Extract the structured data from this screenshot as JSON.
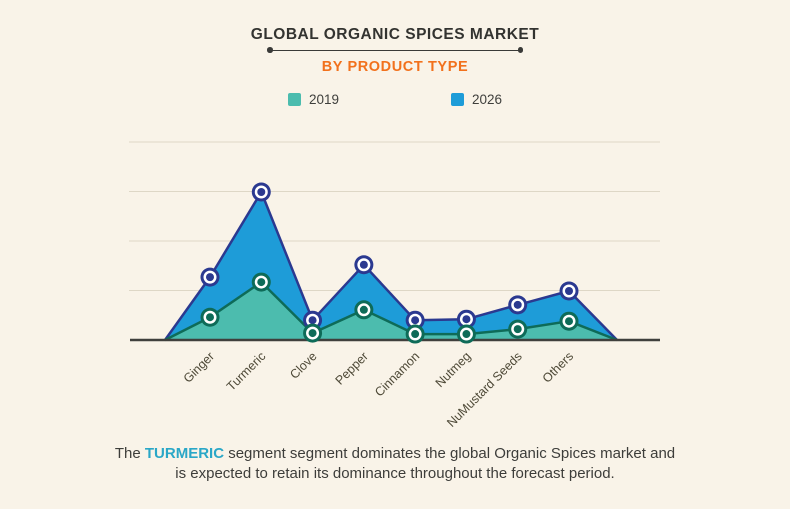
{
  "header": {
    "title": "GLOBAL ORGANIC SPICES MARKET",
    "subtitle": "BY PRODUCT TYPE"
  },
  "colors": {
    "background": "#f9f3e8",
    "subtitle_accent": "#f2711c",
    "highlight_teal": "#2aa7c7",
    "grid_line": "#ded7c6",
    "axis_line": "#3f3f3c",
    "label_text": "#4e4937"
  },
  "chart_data": {
    "type": "area",
    "title": "GLOBAL ORGANIC SPICES MARKET BY PRODUCT TYPE",
    "xlabel": "",
    "ylabel": "",
    "categories": [
      "Ginger",
      "Turmeric",
      "Clove",
      "Pepper",
      "Cinnamon",
      "Nutmeg",
      "NuMustard Seeds",
      "Others"
    ],
    "series": [
      {
        "name": "2019",
        "fill_color": "#4cbcae",
        "line_color": "#0e6b58",
        "values": [
          0.46,
          1.17,
          0.14,
          0.61,
          0.12,
          0.12,
          0.22,
          0.38
        ]
      },
      {
        "name": "2026",
        "fill_color": "#1e9cd8",
        "line_color": "#2b3990",
        "values": [
          1.27,
          2.99,
          0.4,
          1.52,
          0.4,
          0.42,
          0.71,
          0.99
        ]
      }
    ],
    "y_axis_tick_labels_visible": false,
    "units_note": "relative units; 1 unit = one horizontal gridline interval (no numeric y labels shown)",
    "ylim": [
      0,
      4
    ],
    "gridlines": "horizontal",
    "legend_position": "top-center",
    "legend_entries": [
      "2019",
      "2026"
    ]
  },
  "caption": {
    "prefix": "The ",
    "highlight": "TURMERIC",
    "suffix_line1": " segment segment dominates the global Organic Spices market and",
    "line2": "is expected to retain its dominance throughout the forecast period."
  }
}
